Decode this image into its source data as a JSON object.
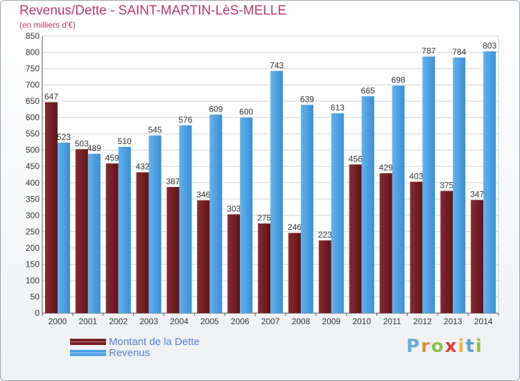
{
  "title": "Revenus/Dette - SAINT-MARTIN-LèS-MELLE",
  "subtitle": "(en milliers d'€)",
  "logo_text": "Proxiti",
  "colors": {
    "dette": "#7a1f24",
    "revenus": "#4fa3e6",
    "title": "#b03a6b",
    "legend_text": "#4f7fd6"
  },
  "legend": [
    {
      "label": "Montant de la Dette",
      "color": "#7a1f24"
    },
    {
      "label": "Revenus",
      "color": "#4fa3e6"
    }
  ],
  "chart_data": {
    "type": "bar",
    "categories": [
      "2000",
      "2001",
      "2002",
      "2003",
      "2004",
      "2005",
      "2006",
      "2007",
      "2008",
      "2009",
      "2010",
      "2011",
      "2012",
      "2013",
      "2014"
    ],
    "series": [
      {
        "name": "Montant de la Dette",
        "values": [
          647,
          503,
          459,
          432,
          387,
          346,
          303,
          275,
          246,
          223,
          456,
          429,
          403,
          375,
          347
        ]
      },
      {
        "name": "Revenus",
        "values": [
          523,
          489,
          510,
          545,
          576,
          609,
          600,
          743,
          639,
          613,
          665,
          698,
          787,
          784,
          803
        ]
      }
    ],
    "ylim": [
      0,
      850
    ],
    "yticks": [
      0,
      50,
      100,
      150,
      200,
      250,
      300,
      350,
      400,
      450,
      500,
      550,
      600,
      650,
      700,
      750,
      800,
      850
    ],
    "grid": true,
    "legend_position": "bottom-left"
  }
}
